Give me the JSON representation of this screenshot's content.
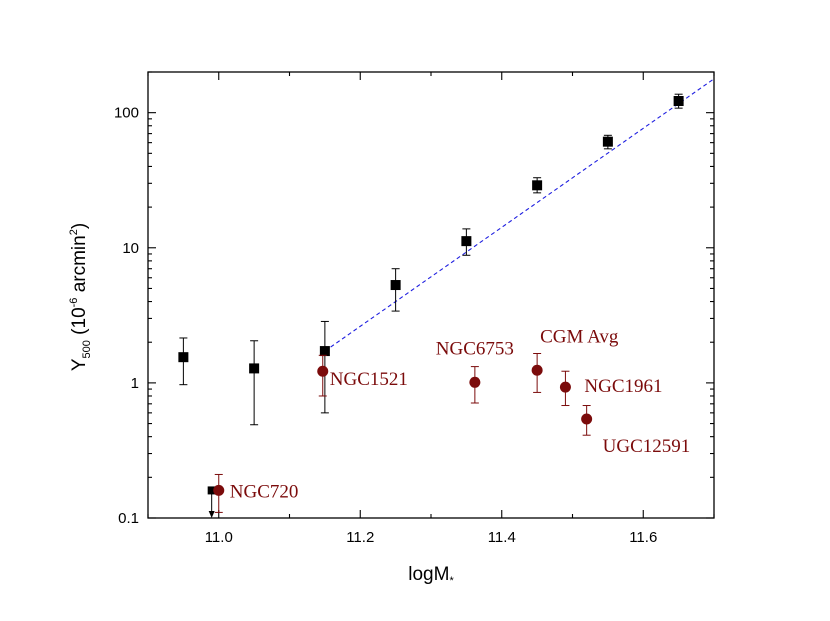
{
  "chart_data": {
    "type": "scatter",
    "title": "",
    "xlabel": "logM",
    "xlabel_sub": "*",
    "ylabel": "Y",
    "ylabel_sub": "500",
    "ylabel_unit_pre": " (10",
    "ylabel_unit_exp": "-6",
    "ylabel_unit_mid": " arcmin",
    "ylabel_unit_exp2": "2",
    "ylabel_unit_post": ")",
    "xlim": [
      10.9,
      11.7
    ],
    "ylim": [
      0.1,
      200
    ],
    "yscale": "log",
    "grid": false,
    "x_ticks": [
      11.0,
      11.2,
      11.4,
      11.6
    ],
    "x_tick_labels": [
      "11.0",
      "11.2",
      "11.4",
      "11.6"
    ],
    "y_ticks": [
      0.1,
      1,
      10,
      100
    ],
    "y_tick_labels": [
      "0.1",
      "1",
      "10",
      "100"
    ],
    "series": [
      {
        "marker": "square",
        "color": "#000000",
        "points": [
          {
            "x": 10.95,
            "y": 1.55,
            "ylo": 0.97,
            "yhi": 2.15
          },
          {
            "x": 11.05,
            "y": 1.28,
            "ylo": 0.49,
            "yhi": 2.05
          },
          {
            "x": 11.15,
            "y": 1.72,
            "ylo": 0.6,
            "yhi": 2.85
          },
          {
            "x": 11.25,
            "y": 5.3,
            "ylo": 3.4,
            "yhi": 7.0
          },
          {
            "x": 11.35,
            "y": 11.2,
            "ylo": 8.8,
            "yhi": 13.8
          },
          {
            "x": 11.45,
            "y": 29,
            "ylo": 25.5,
            "yhi": 33
          },
          {
            "x": 11.55,
            "y": 61,
            "ylo": 54,
            "yhi": 68
          },
          {
            "x": 11.65,
            "y": 122,
            "ylo": 108,
            "yhi": 137
          }
        ]
      },
      {
        "marker": "square-upper-limit",
        "color": "#000000",
        "points": [
          {
            "x": 10.99,
            "y": 0.16,
            "arrow_to": 0.1
          }
        ]
      },
      {
        "marker": "circle",
        "color": "#7b0b0b",
        "points": [
          {
            "x": 11.0,
            "y": 0.16,
            "ylo": 0.11,
            "yhi": 0.21,
            "label": "NGC720"
          },
          {
            "x": 11.147,
            "y": 1.22,
            "ylo": 0.8,
            "yhi": 1.6,
            "label": "NGC1521"
          },
          {
            "x": 11.362,
            "y": 1.01,
            "ylo": 0.71,
            "yhi": 1.32,
            "label": "NGC6753"
          },
          {
            "x": 11.45,
            "y": 1.24,
            "ylo": 0.85,
            "yhi": 1.65,
            "label": "CGM Avg"
          },
          {
            "x": 11.49,
            "y": 0.93,
            "ylo": 0.68,
            "yhi": 1.22,
            "label": "NGC1961"
          },
          {
            "x": 11.52,
            "y": 0.54,
            "ylo": 0.41,
            "yhi": 0.68,
            "label": "UGC12591"
          }
        ]
      }
    ],
    "fit_line": {
      "style": "dashed",
      "color": "#1f1fe0",
      "x": [
        11.15,
        11.7
      ],
      "y": [
        1.72,
        178
      ]
    }
  }
}
